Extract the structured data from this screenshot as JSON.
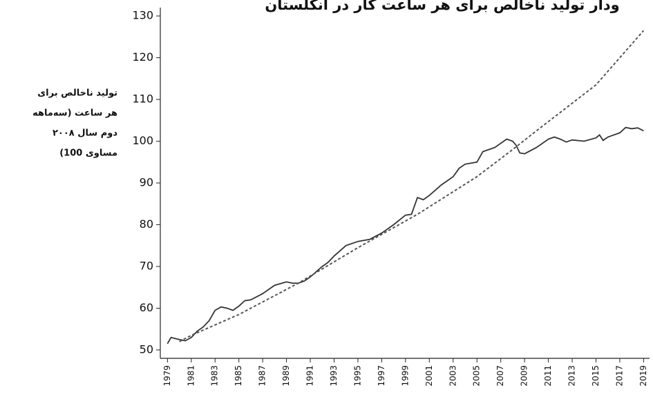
{
  "chart_data": {
    "type": "line",
    "title": "ودار تولید ناخالص برای هر ساعت کار در انگلستان",
    "y_label": [
      "تولید ناخالص برای",
      "هر ساعت (سه‌ماهه",
      "دوم سال ۲۰۰۸",
      "مساوی 100)"
    ],
    "xlim": [
      1978.4,
      2019.5
    ],
    "ylim": [
      48,
      132
    ],
    "xticks": [
      1979,
      1981,
      1983,
      1985,
      1987,
      1989,
      1991,
      1993,
      1995,
      1997,
      1999,
      2001,
      2003,
      2005,
      2007,
      2009,
      2011,
      2013,
      2015,
      2017,
      2019
    ],
    "yticks": [
      50,
      60,
      70,
      80,
      90,
      100,
      110,
      120,
      130
    ],
    "series": [
      {
        "color": "#333333",
        "dashed": false,
        "x": [
          1979,
          1979.3,
          1980,
          1980.5,
          1981,
          1981.5,
          1982,
          1982.5,
          1983,
          1983.5,
          1984,
          1984.5,
          1985,
          1985.5,
          1986,
          1987,
          1988,
          1989,
          1989.5,
          1990,
          1990.5,
          1991,
          1992,
          1992.5,
          1993,
          1994,
          1995,
          1996,
          1997,
          1998,
          1999,
          1999.5,
          2000,
          2000.5,
          2001,
          2002,
          2003,
          2003.5,
          2004,
          2005,
          2005.5,
          2006,
          2006.5,
          2007,
          2007.5,
          2008,
          2008.3,
          2008.6,
          2009,
          2010,
          2011,
          2011.5,
          2012,
          2012.5,
          2013,
          2014,
          2015,
          2015.3,
          2015.6,
          2016,
          2017,
          2017.5,
          2018,
          2018.5,
          2019
        ],
        "values": [
          51.5,
          53,
          52.5,
          52.2,
          53,
          54.5,
          55.5,
          57,
          59.5,
          60.3,
          60,
          59.5,
          60.5,
          61.8,
          62,
          63.5,
          65.5,
          66.3,
          66,
          66,
          66.5,
          67.5,
          70,
          71,
          72.5,
          75,
          76,
          76.5,
          78,
          80,
          82.3,
          82.5,
          86.5,
          86,
          87,
          89.5,
          91.5,
          93.5,
          94.5,
          95,
          97.5,
          98,
          98.5,
          99.5,
          100.5,
          100,
          99,
          97.2,
          97,
          98.5,
          100.5,
          101,
          100.5,
          99.8,
          100.3,
          100,
          100.8,
          101.5,
          100.2,
          101,
          102,
          103.3,
          103,
          103.2,
          102.5
        ]
      },
      {
        "color": "#555555",
        "dashed": true,
        "x": [
          1980,
          1981,
          1985,
          1990,
          1995,
          2000,
          2005,
          2008,
          2010,
          2015,
          2019
        ],
        "values": [
          52,
          53.5,
          58.5,
          66,
          74.5,
          82.5,
          91.5,
          98,
          102.5,
          113.5,
          126.5
        ]
      }
    ]
  }
}
